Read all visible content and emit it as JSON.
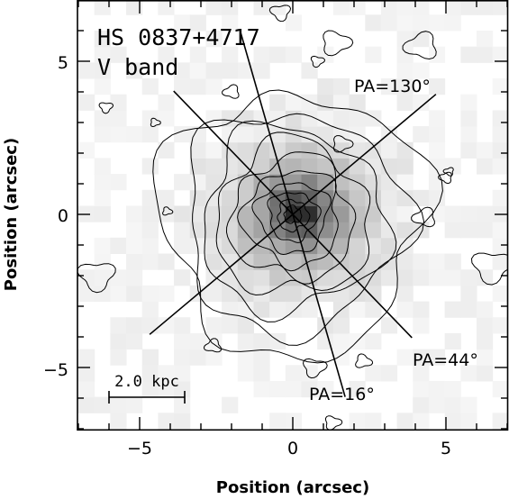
{
  "title": {
    "object": "HS 0837+4717",
    "band": "V band"
  },
  "axes": {
    "xlabel": "Position (arcsec)",
    "ylabel": "Position (arcsec)",
    "xlim": [
      -7,
      7
    ],
    "ylim": [
      -7,
      7
    ],
    "x_ticks": [
      "−5",
      "0",
      "5"
    ],
    "y_ticks": [
      "−5",
      "0",
      "5"
    ]
  },
  "position_angles": [
    {
      "label": "PA=130°",
      "angle_deg": 130
    },
    {
      "label": "PA=44°",
      "angle_deg": 44
    },
    {
      "label": "PA=16°",
      "angle_deg": 16
    }
  ],
  "scale_bar": {
    "label": "2.0 kpc",
    "length_arcsec": 2.5
  },
  "colors": {
    "ink": "#000000",
    "background": "#ffffff"
  }
}
